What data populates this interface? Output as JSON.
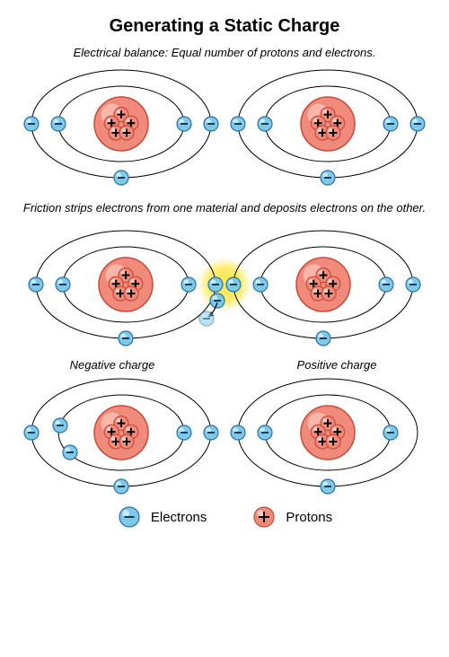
{
  "title": "Generating a Static Charge",
  "title_fontsize": 20,
  "title_color": "#000000",
  "row1": {
    "subtitle": "Electrical balance: Equal number of protons and electrons.",
    "subtitle_fontsize": 13
  },
  "row2": {
    "subtitle": "Friction strips electrons from one material and deposits electrons on the other.",
    "subtitle_fontsize": 13
  },
  "row3": {
    "left_label": "Negative charge",
    "right_label": "Positive charge",
    "label_fontsize": 13
  },
  "legend": {
    "electrons": "Electrons",
    "protons": "Protons",
    "fontsize": 15
  },
  "colors": {
    "background": "#ffffff",
    "orbit_stroke": "#000000",
    "orbit_width": 1,
    "electron_fill": "#7fc9e8",
    "electron_stroke": "#2b6fa8",
    "electron_highlight": "#d8f0fa",
    "electron_minus": "#1a3a5a",
    "nucleus_fill": "#f08a7a",
    "nucleus_stroke": "#c74a3a",
    "nucleus_highlight": "#ffc9bd",
    "proton_fill": "#f08a7a",
    "proton_stroke": "#c74a3a",
    "proton_highlight": "#ffd8cf",
    "proton_plus": "#000000",
    "spark_fill": "#ffe850",
    "spark_edge": "#ffffff",
    "arrow_color": "#000000"
  },
  "geometry": {
    "atom_rx_outer": 100,
    "atom_ry_outer": 60,
    "atom_rx_inner": 70,
    "atom_ry_inner": 42,
    "nucleus_r": 30,
    "electron_r": 8,
    "proton_r": 8,
    "proton_count": 5
  },
  "atoms": {
    "balanced_left": {
      "electrons": [
        [
          -100,
          0
        ],
        [
          -70,
          0
        ],
        [
          70,
          0
        ],
        [
          100,
          0
        ],
        [
          0,
          60
        ]
      ]
    },
    "balanced_right": {
      "electrons": [
        [
          -100,
          0
        ],
        [
          -70,
          0
        ],
        [
          70,
          0
        ],
        [
          100,
          0
        ],
        [
          0,
          60
        ]
      ]
    },
    "friction_left": {
      "electrons": [
        [
          -100,
          0
        ],
        [
          -70,
          0
        ],
        [
          70,
          0
        ],
        [
          100,
          0
        ],
        [
          0,
          60
        ]
      ]
    },
    "friction_right": {
      "electrons": [
        [
          -100,
          0
        ],
        [
          -70,
          0
        ],
        [
          70,
          0
        ],
        [
          100,
          0
        ],
        [
          0,
          60
        ]
      ]
    },
    "transfer_electron": {
      "from": [
        102,
        18
      ],
      "to": [
        90,
        38
      ]
    },
    "negative": {
      "electrons": [
        [
          -100,
          0
        ],
        [
          -68,
          -8
        ],
        [
          -57,
          22
        ],
        [
          70,
          0
        ],
        [
          100,
          0
        ],
        [
          0,
          60
        ]
      ]
    },
    "positive": {
      "electrons": [
        [
          -100,
          0
        ],
        [
          -70,
          0
        ],
        [
          70,
          0
        ],
        [
          0,
          60
        ]
      ]
    }
  }
}
